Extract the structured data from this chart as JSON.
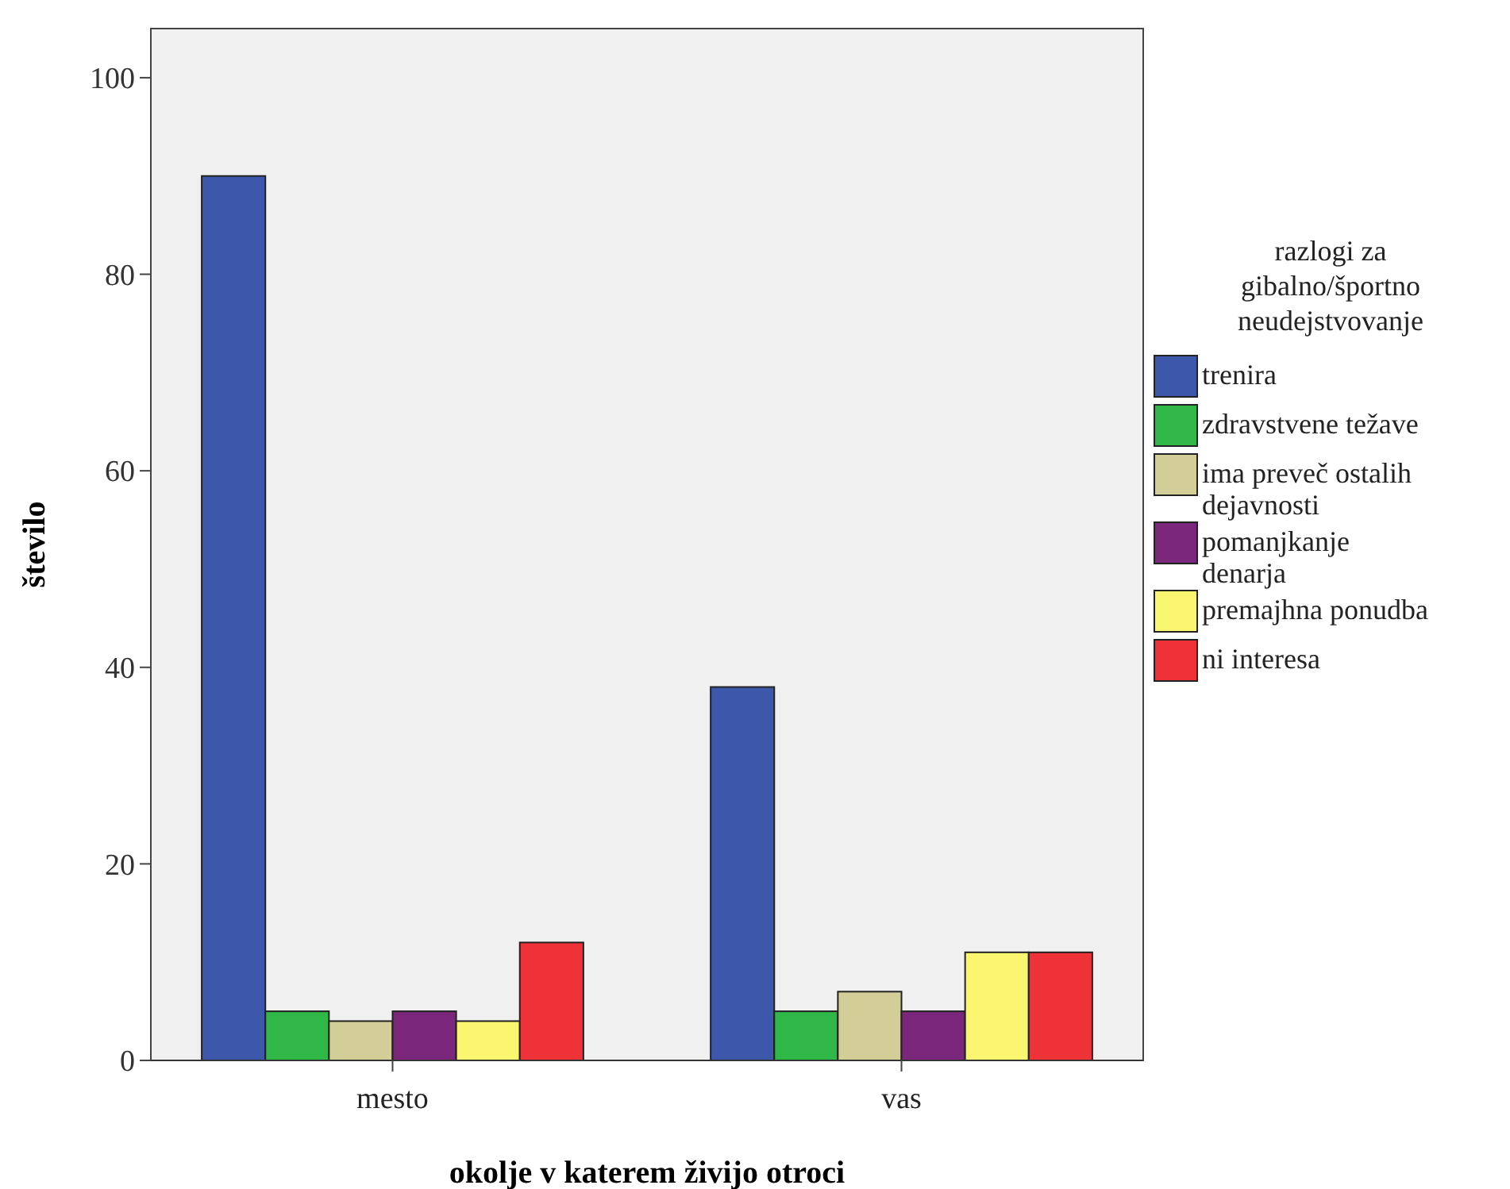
{
  "chart_data": {
    "type": "bar",
    "xlabel": "okolje v katerem živijo otroci",
    "ylabel": "število",
    "legend_title": "razlogi za gibalno/športno neudejstvovanje",
    "categories": [
      "mesto",
      "vas"
    ],
    "series": [
      {
        "name": "trenira",
        "color": "#3d58aa",
        "values": [
          90,
          38
        ]
      },
      {
        "name": "zdravstvene težave",
        "color": "#2fb847",
        "values": [
          5,
          5
        ]
      },
      {
        "name": "ima preveč ostalih dejavnosti",
        "color": "#d3ce97",
        "values": [
          4,
          7
        ]
      },
      {
        "name": "pomanjkanje denarja",
        "color": "#7b287c",
        "values": [
          5,
          5
        ]
      },
      {
        "name": "premajhna ponudba",
        "color": "#fbf66f",
        "values": [
          4,
          11
        ]
      },
      {
        "name": "ni interesa",
        "color": "#ef3138",
        "values": [
          12,
          11
        ]
      }
    ],
    "ylim": [
      0,
      105
    ],
    "yticks": [
      0,
      20,
      40,
      60,
      80,
      100
    ],
    "grid": false,
    "legend": "right"
  }
}
